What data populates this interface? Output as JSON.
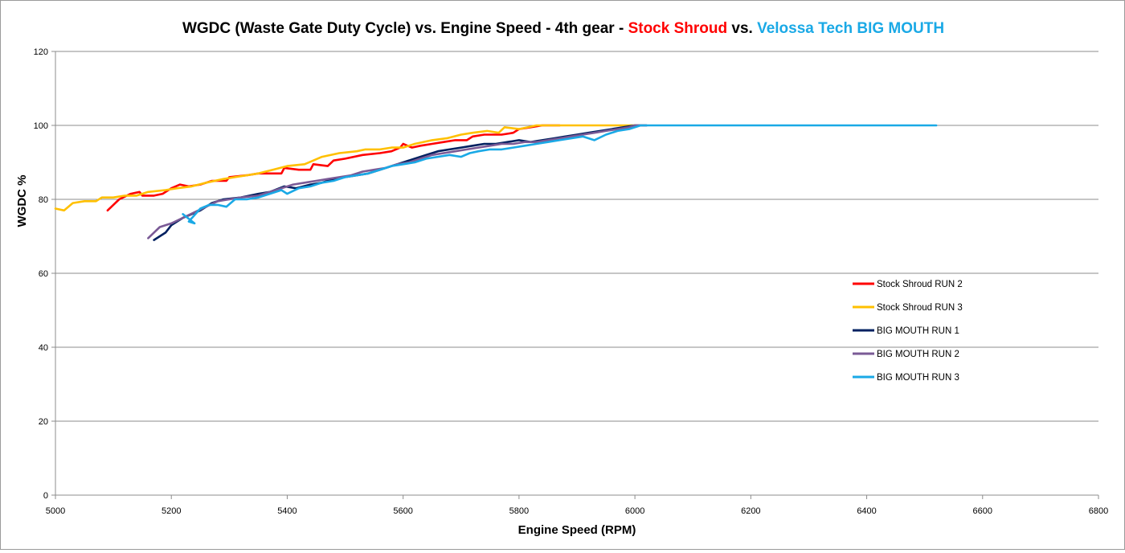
{
  "chart_data": {
    "type": "line",
    "title": {
      "part1": "WGDC (Waste Gate Duty Cycle) vs. Engine Speed - 4th gear - ",
      "part2": "Stock Shroud",
      "part3": " vs. ",
      "part4": "Velossa Tech BIG MOUTH",
      "color_part2": "#ff0000",
      "color_part4": "#1aa9e6"
    },
    "xlabel": "Engine Speed (RPM)",
    "ylabel": "WGDC %",
    "xlim": [
      5000,
      6800
    ],
    "ylim": [
      0,
      120
    ],
    "xticks": [
      5000,
      5200,
      5400,
      5600,
      5800,
      6000,
      6200,
      6400,
      6600,
      6800
    ],
    "yticks": [
      0,
      20,
      40,
      60,
      80,
      100,
      120
    ],
    "grid": "horizontal",
    "legend_position": "right-middle",
    "series": [
      {
        "name": "Stock Shroud RUN 2",
        "color": "#ff0000",
        "points": [
          [
            5090,
            77
          ],
          [
            5110,
            80
          ],
          [
            5130,
            81.5
          ],
          [
            5145,
            82
          ],
          [
            5150,
            81
          ],
          [
            5170,
            81
          ],
          [
            5185,
            81.5
          ],
          [
            5200,
            83
          ],
          [
            5215,
            84
          ],
          [
            5230,
            83.5
          ],
          [
            5250,
            84
          ],
          [
            5270,
            85
          ],
          [
            5295,
            85
          ],
          [
            5300,
            86
          ],
          [
            5330,
            86.5
          ],
          [
            5350,
            87
          ],
          [
            5370,
            87
          ],
          [
            5390,
            87
          ],
          [
            5395,
            88.5
          ],
          [
            5420,
            88
          ],
          [
            5440,
            88
          ],
          [
            5445,
            89.5
          ],
          [
            5470,
            89
          ],
          [
            5480,
            90.5
          ],
          [
            5500,
            91
          ],
          [
            5530,
            92
          ],
          [
            5560,
            92.5
          ],
          [
            5580,
            93
          ],
          [
            5595,
            94
          ],
          [
            5600,
            95
          ],
          [
            5615,
            94
          ],
          [
            5630,
            94.5
          ],
          [
            5650,
            95
          ],
          [
            5670,
            95.5
          ],
          [
            5690,
            96
          ],
          [
            5710,
            96
          ],
          [
            5720,
            97
          ],
          [
            5740,
            97.5
          ],
          [
            5770,
            97.5
          ],
          [
            5790,
            98
          ],
          [
            5800,
            99
          ],
          [
            5820,
            99.5
          ],
          [
            5840,
            100
          ],
          [
            5870,
            100
          ]
        ]
      },
      {
        "name": "Stock Shroud RUN 3",
        "color": "#ffc000",
        "points": [
          [
            5000,
            77.5
          ],
          [
            5015,
            77
          ],
          [
            5030,
            79
          ],
          [
            5050,
            79.5
          ],
          [
            5070,
            79.5
          ],
          [
            5080,
            80.5
          ],
          [
            5100,
            80.5
          ],
          [
            5120,
            81
          ],
          [
            5140,
            81
          ],
          [
            5160,
            82
          ],
          [
            5190,
            82.5
          ],
          [
            5210,
            83
          ],
          [
            5235,
            83.5
          ],
          [
            5260,
            84.5
          ],
          [
            5290,
            85.5
          ],
          [
            5310,
            86
          ],
          [
            5330,
            86.5
          ],
          [
            5350,
            87
          ],
          [
            5375,
            88
          ],
          [
            5400,
            89
          ],
          [
            5430,
            89.5
          ],
          [
            5460,
            91.5
          ],
          [
            5490,
            92.5
          ],
          [
            5520,
            93
          ],
          [
            5535,
            93.5
          ],
          [
            5560,
            93.5
          ],
          [
            5580,
            94
          ],
          [
            5600,
            94
          ],
          [
            5620,
            95
          ],
          [
            5650,
            96
          ],
          [
            5675,
            96.5
          ],
          [
            5700,
            97.5
          ],
          [
            5720,
            98
          ],
          [
            5745,
            98.5
          ],
          [
            5765,
            98
          ],
          [
            5775,
            99.5
          ],
          [
            5800,
            99
          ],
          [
            5830,
            100
          ],
          [
            6000,
            100
          ]
        ]
      },
      {
        "name": "BIG MOUTH RUN 1",
        "color": "#002060",
        "points": [
          [
            5170,
            69
          ],
          [
            5190,
            71
          ],
          [
            5200,
            73
          ],
          [
            5220,
            75
          ],
          [
            5250,
            77
          ],
          [
            5270,
            79
          ],
          [
            5290,
            80
          ],
          [
            5320,
            80.5
          ],
          [
            5350,
            81.5
          ],
          [
            5370,
            82
          ],
          [
            5395,
            83.5
          ],
          [
            5415,
            83
          ],
          [
            5440,
            84
          ],
          [
            5460,
            84.5
          ],
          [
            5480,
            85.5
          ],
          [
            5500,
            86
          ],
          [
            5520,
            86.5
          ],
          [
            5540,
            87
          ],
          [
            5560,
            88
          ],
          [
            5580,
            89
          ],
          [
            5600,
            90
          ],
          [
            5620,
            91
          ],
          [
            5640,
            92
          ],
          [
            5660,
            93
          ],
          [
            5680,
            93.5
          ],
          [
            5700,
            94
          ],
          [
            5720,
            94.5
          ],
          [
            5740,
            95
          ],
          [
            5760,
            95
          ],
          [
            5780,
            95.5
          ],
          [
            5800,
            96
          ],
          [
            5820,
            95.5
          ],
          [
            5840,
            96
          ],
          [
            5860,
            96.5
          ],
          [
            5880,
            97
          ],
          [
            5900,
            97.5
          ],
          [
            5920,
            98
          ],
          [
            5940,
            98.5
          ],
          [
            5960,
            99
          ],
          [
            5980,
            99.5
          ],
          [
            6000,
            100
          ],
          [
            6020,
            100
          ]
        ]
      },
      {
        "name": "BIG MOUTH RUN 2",
        "color": "#7a5a96",
        "points": [
          [
            5160,
            69.5
          ],
          [
            5180,
            72.5
          ],
          [
            5200,
            73.5
          ],
          [
            5220,
            75
          ],
          [
            5240,
            76.5
          ],
          [
            5260,
            78
          ],
          [
            5280,
            79.5
          ],
          [
            5300,
            80
          ],
          [
            5320,
            80.5
          ],
          [
            5350,
            81
          ],
          [
            5370,
            82
          ],
          [
            5390,
            83
          ],
          [
            5410,
            84
          ],
          [
            5430,
            84.5
          ],
          [
            5450,
            85
          ],
          [
            5470,
            85.5
          ],
          [
            5490,
            86
          ],
          [
            5510,
            86.5
          ],
          [
            5530,
            87.5
          ],
          [
            5550,
            88
          ],
          [
            5570,
            88.5
          ],
          [
            5590,
            89.5
          ],
          [
            5610,
            90
          ],
          [
            5630,
            91
          ],
          [
            5650,
            92
          ],
          [
            5670,
            92.5
          ],
          [
            5690,
            93
          ],
          [
            5710,
            93.5
          ],
          [
            5730,
            94
          ],
          [
            5750,
            94.5
          ],
          [
            5770,
            95
          ],
          [
            5790,
            95
          ],
          [
            5810,
            95.5
          ],
          [
            5830,
            95.5
          ],
          [
            5850,
            96
          ],
          [
            5870,
            96.5
          ],
          [
            5890,
            97
          ],
          [
            5910,
            97.5
          ],
          [
            5930,
            98
          ],
          [
            5950,
            98.5
          ],
          [
            5970,
            99
          ],
          [
            5990,
            99.5
          ],
          [
            6000,
            100
          ],
          [
            6020,
            100
          ]
        ]
      },
      {
        "name": "BIG MOUTH RUN 3",
        "color": "#1aa9e6",
        "points": [
          [
            5220,
            76
          ],
          [
            5240,
            73.5
          ],
          [
            5230,
            74
          ],
          [
            5250,
            77.5
          ],
          [
            5265,
            78.5
          ],
          [
            5280,
            78.5
          ],
          [
            5295,
            78
          ],
          [
            5310,
            80
          ],
          [
            5330,
            80
          ],
          [
            5350,
            80.5
          ],
          [
            5370,
            81.5
          ],
          [
            5390,
            82.5
          ],
          [
            5400,
            81.5
          ],
          [
            5420,
            83
          ],
          [
            5440,
            83.5
          ],
          [
            5460,
            84.5
          ],
          [
            5480,
            85
          ],
          [
            5500,
            86
          ],
          [
            5520,
            86.5
          ],
          [
            5540,
            87
          ],
          [
            5560,
            88
          ],
          [
            5580,
            89
          ],
          [
            5600,
            89.5
          ],
          [
            5620,
            90
          ],
          [
            5640,
            91
          ],
          [
            5660,
            91.5
          ],
          [
            5680,
            92
          ],
          [
            5700,
            91.5
          ],
          [
            5715,
            92.5
          ],
          [
            5730,
            93
          ],
          [
            5750,
            93.5
          ],
          [
            5770,
            93.5
          ],
          [
            5790,
            94
          ],
          [
            5810,
            94.5
          ],
          [
            5830,
            95
          ],
          [
            5850,
            95.5
          ],
          [
            5870,
            96
          ],
          [
            5890,
            96.5
          ],
          [
            5910,
            97
          ],
          [
            5930,
            96
          ],
          [
            5950,
            97.5
          ],
          [
            5970,
            98.5
          ],
          [
            5990,
            99
          ],
          [
            6010,
            100
          ],
          [
            6100,
            100
          ],
          [
            6300,
            100
          ],
          [
            6520,
            100
          ]
        ]
      }
    ]
  }
}
